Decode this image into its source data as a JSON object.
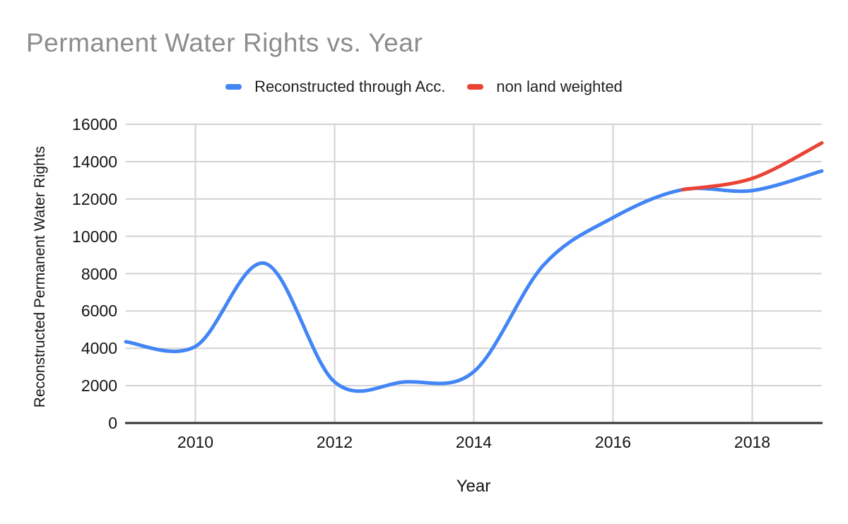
{
  "title": {
    "text": "Permanent Water Rights vs. Year",
    "color": "#8c8c8c"
  },
  "legend": {
    "items": [
      {
        "label": "Reconstructed through Acc.",
        "color": "#4285F4"
      },
      {
        "label": "non land weighted",
        "color": "#EA4335"
      }
    ]
  },
  "colors": {
    "grid": "#d2d2d2",
    "axis_line": "#333333",
    "tick_label": "#141414"
  },
  "chart_data": {
    "type": "line",
    "title": "Permanent Water Rights vs. Year",
    "xlabel": "Year",
    "ylabel": "Reconstructed Permanent Water Rights",
    "xlim": [
      2009,
      2019
    ],
    "ylim": [
      0,
      16000
    ],
    "x_ticks": [
      2010,
      2012,
      2014,
      2016,
      2018
    ],
    "y_ticks": [
      0,
      2000,
      4000,
      6000,
      8000,
      10000,
      12000,
      14000,
      16000
    ],
    "grid": true,
    "line_smoothing": true,
    "legend_position": "top",
    "series": [
      {
        "name": "Reconstructed through Acc.",
        "color": "#4285F4",
        "x": [
          2009,
          2010,
          2011,
          2012,
          2013,
          2014,
          2015,
          2016,
          2017,
          2018,
          2019
        ],
        "values": [
          4350,
          4100,
          8550,
          2200,
          2200,
          2750,
          8450,
          11000,
          12500,
          12450,
          13500
        ]
      },
      {
        "name": "non land weighted",
        "color": "#EA4335",
        "x": [
          2017,
          2018,
          2019
        ],
        "values": [
          12500,
          13100,
          15000
        ]
      }
    ]
  }
}
